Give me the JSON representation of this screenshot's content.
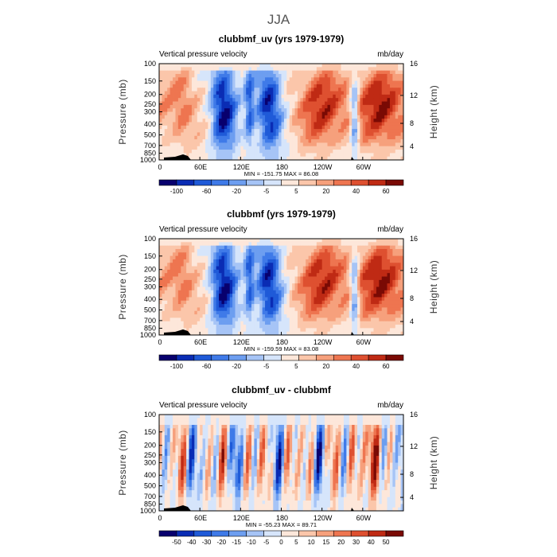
{
  "figure_title": "JJA",
  "chart_data": [
    {
      "type": "heatmap",
      "title": "clubbmf_uv (yrs 1979-1979)",
      "subtitle_left": "Vertical pressure velocity",
      "subtitle_right": "mb/day",
      "ylabel": "Pressure (mb)",
      "ylabel_right": "Height (km)",
      "x_ticks": [
        "0",
        "60E",
        "120E",
        "180",
        "120W",
        "60W"
      ],
      "y_ticks": [
        "100",
        "150",
        "200",
        "250",
        "300",
        "400",
        "500",
        "700",
        "850",
        "1000"
      ],
      "y_ticks_right": [
        "16",
        "12",
        "8",
        "4"
      ],
      "stats": "MIN = -151.75   MAX =   86.08",
      "min": -151.75,
      "max": 86.08,
      "colorbar_labels": [
        "-100",
        "-60",
        "-20",
        "-5",
        "5",
        "20",
        "40",
        "60"
      ],
      "kind": "full"
    },
    {
      "type": "heatmap",
      "title": "clubbmf (yrs 1979-1979)",
      "subtitle_left": "Vertical pressure velocity",
      "subtitle_right": "mb/day",
      "ylabel": "Pressure (mb)",
      "ylabel_right": "Height (km)",
      "x_ticks": [
        "0",
        "60E",
        "120E",
        "180",
        "120W",
        "60W"
      ],
      "y_ticks": [
        "100",
        "150",
        "200",
        "250",
        "300",
        "400",
        "500",
        "700",
        "850",
        "1000"
      ],
      "y_ticks_right": [
        "16",
        "12",
        "8",
        "4"
      ],
      "stats": "MIN = -159.59   MAX =   83.08",
      "min": -159.59,
      "max": 83.08,
      "colorbar_labels": [
        "-100",
        "-60",
        "-20",
        "-5",
        "5",
        "20",
        "40",
        "60"
      ],
      "kind": "full"
    },
    {
      "type": "heatmap",
      "title": "clubbmf_uv - clubbmf",
      "subtitle_left": "Vertical pressure velocity",
      "subtitle_right": "mb/day",
      "ylabel": "Pressure (mb)",
      "ylabel_right": "Height (km)",
      "x_ticks": [
        "0",
        "60E",
        "120E",
        "180",
        "120W",
        "60W"
      ],
      "y_ticks": [
        "100",
        "150",
        "200",
        "250",
        "300",
        "400",
        "500",
        "700",
        "850",
        "1000"
      ],
      "y_ticks_right": [
        "16",
        "12",
        "8",
        "4"
      ],
      "stats": "MIN = -55.23   MAX =   89.71",
      "min": -55.23,
      "max": 89.71,
      "colorbar_labels": [
        "-50",
        "-40",
        "-30",
        "-20",
        "-15",
        "-10",
        "-5",
        "0",
        "5",
        "10",
        "15",
        "20",
        "30",
        "40",
        "50"
      ],
      "kind": "diff"
    }
  ],
  "colors": {
    "scale_14": [
      "#08006e",
      "#0a2cb4",
      "#1f5ad8",
      "#3f7ae8",
      "#6d9ef0",
      "#a6c4f6",
      "#d6e5fb",
      "#fde7da",
      "#fbc6aa",
      "#f6a07c",
      "#ee7550",
      "#de5030",
      "#bf2a14",
      "#7a0a04"
    ]
  }
}
